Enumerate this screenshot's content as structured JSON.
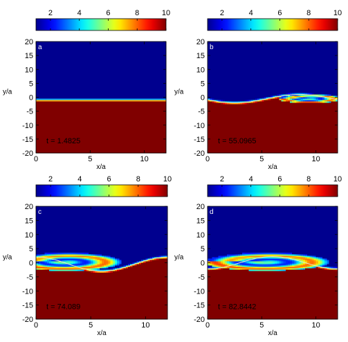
{
  "chart_data": [
    {
      "type": "heatmap",
      "panel_label": "a",
      "time_label": "t = 1.4825",
      "xlabel": "x/a",
      "ylabel": "y/a",
      "xlim": [
        0,
        12
      ],
      "ylim": [
        -20,
        20
      ],
      "x_ticks": [
        0,
        5,
        10
      ],
      "y_ticks": [
        20,
        15,
        10,
        5,
        0,
        -5,
        -10,
        -15,
        -20
      ],
      "colorbar": {
        "range": [
          1,
          10
        ],
        "ticks": [
          2,
          4,
          6,
          8,
          10
        ],
        "colormap": "jet"
      },
      "field": {
        "upper_value": 1,
        "lower_value": 10,
        "interface_y": -1,
        "interface_amplitude": 0,
        "wavelength": 12,
        "interface_phase_x": 0,
        "vortex_center_x": 0,
        "vortex_center_y": 0,
        "vortex_width": 0,
        "vortex_height": 0
      }
    },
    {
      "type": "heatmap",
      "panel_label": "b",
      "time_label": "t = 55.0965",
      "xlabel": "x/a",
      "ylabel": "y/a",
      "xlim": [
        0,
        12
      ],
      "ylim": [
        -20,
        20
      ],
      "x_ticks": [
        0,
        5,
        10
      ],
      "y_ticks": [
        20,
        15,
        10,
        5,
        0,
        -5,
        -10,
        -15,
        -20
      ],
      "colorbar": {
        "range": [
          1,
          10
        ],
        "ticks": [
          2,
          4,
          6,
          8,
          10
        ],
        "colormap": "jet"
      },
      "field": {
        "upper_value": 1,
        "lower_value": 10,
        "interface_y": -0.5,
        "interface_amplitude": 1.5,
        "wavelength": 12,
        "interface_phase_x": 5.5,
        "vortex_center_x": 9.5,
        "vortex_center_y": -0.5,
        "vortex_width": 3,
        "vortex_height": 1.6
      }
    },
    {
      "type": "heatmap",
      "panel_label": "c",
      "time_label": "t = 74.089",
      "xlabel": "x/a",
      "ylabel": "y/a",
      "xlim": [
        0,
        12
      ],
      "ylim": [
        -20,
        20
      ],
      "x_ticks": [
        0,
        5,
        10
      ],
      "y_ticks": [
        20,
        15,
        10,
        5,
        0,
        -5,
        -10,
        -15,
        -20
      ],
      "colorbar": {
        "range": [
          1,
          10
        ],
        "ticks": [
          2,
          4,
          6,
          8,
          10
        ],
        "colormap": "jet"
      },
      "field": {
        "upper_value": 1,
        "lower_value": 10,
        "interface_y": -0.5,
        "interface_amplitude": 2.5,
        "wavelength": 12,
        "interface_phase_x": 9,
        "vortex_center_x": 2.8,
        "vortex_center_y": 0.3,
        "vortex_width": 5,
        "vortex_height": 3.2
      }
    },
    {
      "type": "heatmap",
      "panel_label": "d",
      "time_label": "t = 82.8442",
      "xlabel": "x/a",
      "ylabel": "y/a",
      "xlim": [
        0,
        12
      ],
      "ylim": [
        -20,
        20
      ],
      "x_ticks": [
        0,
        5,
        10
      ],
      "y_ticks": [
        20,
        15,
        10,
        5,
        0,
        -5,
        -10,
        -15,
        -20
      ],
      "colorbar": {
        "range": [
          1,
          10
        ],
        "ticks": [
          2,
          4,
          6,
          8,
          10
        ],
        "colormap": "jet"
      },
      "field": {
        "upper_value": 1,
        "lower_value": 10,
        "interface_y": 0,
        "interface_amplitude": 2.2,
        "wavelength": 12,
        "interface_phase_x": 3,
        "vortex_center_x": 5.5,
        "vortex_center_y": 0.3,
        "vortex_width": 5.8,
        "vortex_height": 3.2
      }
    }
  ]
}
